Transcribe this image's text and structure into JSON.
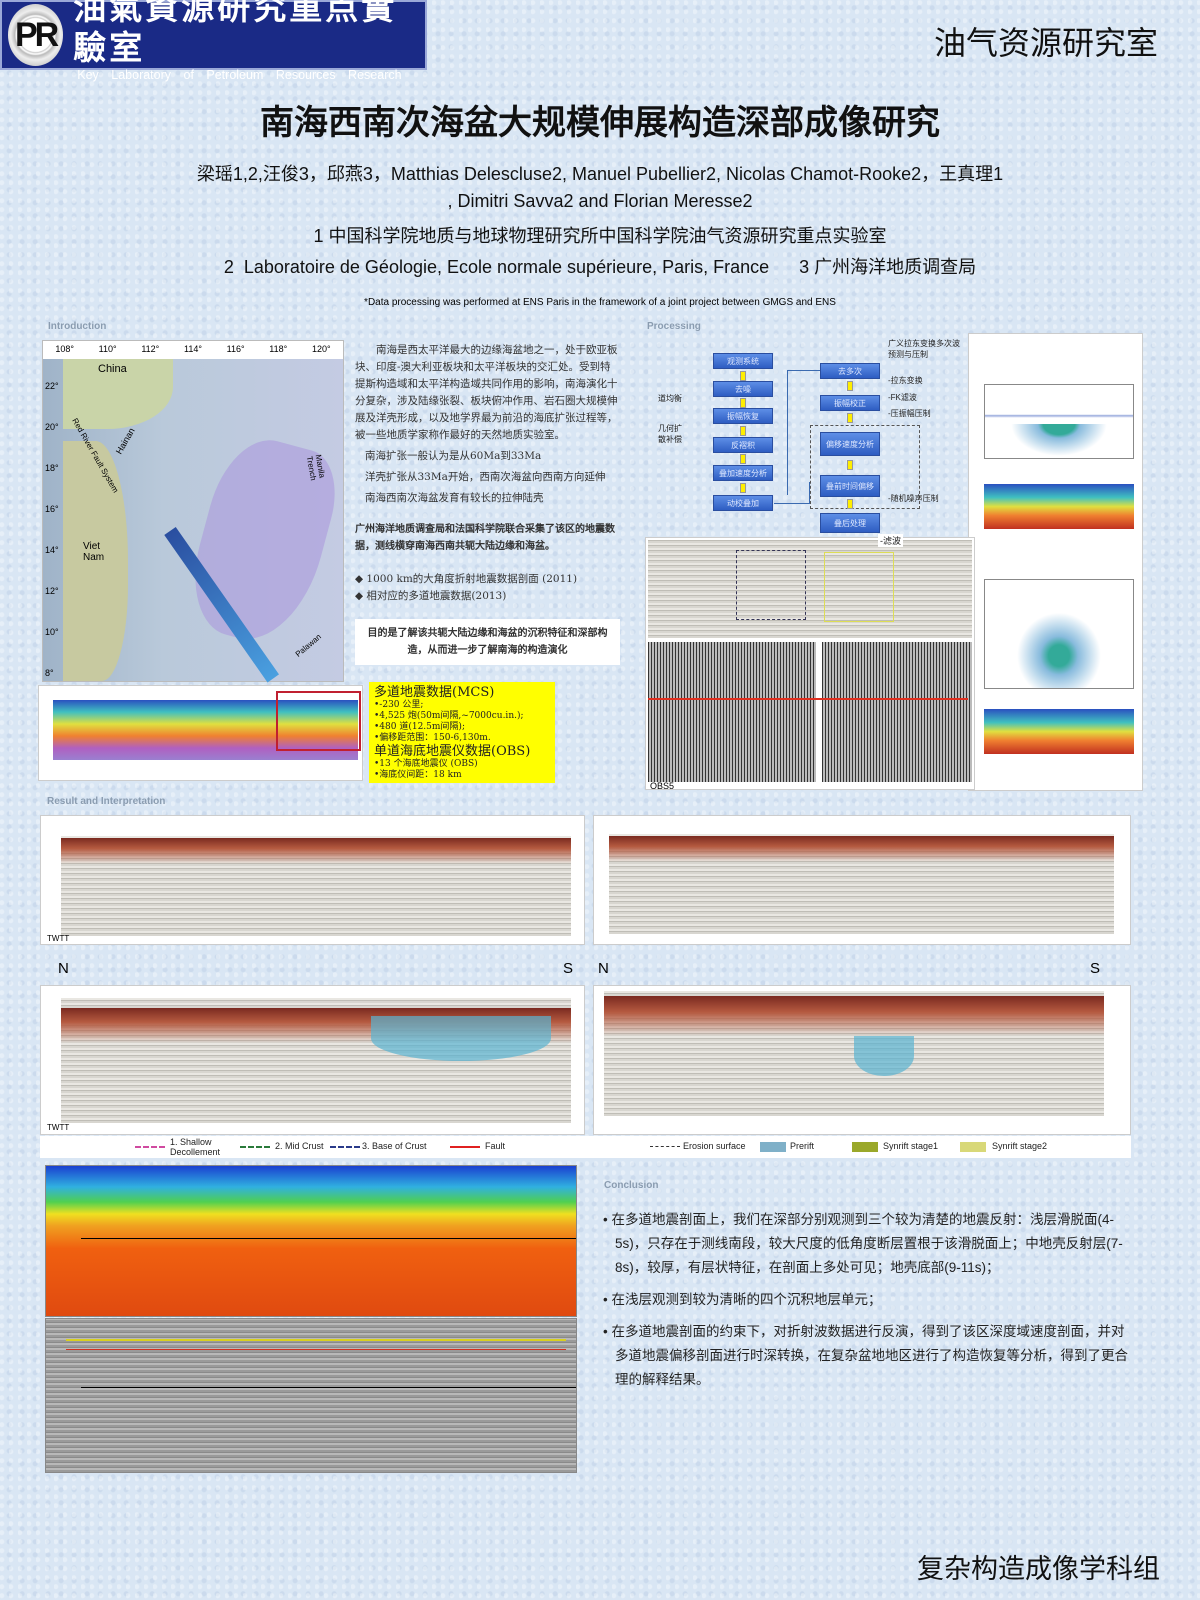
{
  "header": {
    "logo_letters": "PR",
    "logo_cn": "油氣資源研究重点實驗室",
    "logo_en": "Key Laboratory of Petroleum Resources Research",
    "right_title": "油气资源研究室"
  },
  "title": "南海西南次海盆大规模伸展构造深部成像研究",
  "authors": [
    "梁瑶1,2,汪俊3，邱燕3，Matthias Delescluse2, Manuel Pubellier2, Nicolas Chamot-Rooke2，王真理1",
    ", Dimitri Savva2 and Florian Meresse2"
  ],
  "affiliations": [
    "1 中国科学院地质与地球物理研究所中国科学院油气资源研究重点实验室",
    "2  Laboratoire de Géologie, Ecole normale supérieure, Paris, France      3 广州海洋地质调查局"
  ],
  "note": "*Data processing was performed at ENS Paris in the framework of a joint project between GMGS and ENS",
  "introduction": {
    "label": "Introduction",
    "map_labels": {
      "lon": [
        "108°",
        "110°",
        "112°",
        "114°",
        "116°",
        "118°",
        "120°"
      ],
      "lat": [
        "22°",
        "20°",
        "18°",
        "16°",
        "14°",
        "12°",
        "10°",
        "8°"
      ],
      "china": "China",
      "hainan": "Hainan",
      "vietnam": "Viet Nam",
      "red_river": "Red River Fault System",
      "manila": "Manila Trench",
      "palawan": "Palawan"
    },
    "paragraph": "南海是西太平洋最大的边缘海盆地之一，处于欧亚板块、印度-澳大利亚板块和太平洋板块的交汇处。受到特提斯构造域和太平洋构造域共同作用的影响，南海演化十分复杂，涉及陆缘张裂、板块俯冲作用、岩石圈大规模伸展及洋壳形成，以及地学界最为前沿的海底扩张过程等，被一些地质学家称作最好的天然地质实验室。",
    "bullets": [
      "南海扩张一般认为是从60Ma到33Ma",
      "洋壳扩张从33Ma开始，西南次海盆向西南方向延伸",
      "南海西南次海盆发育有较长的拉伸陆壳"
    ],
    "survey": "广州海洋地质调查局和法国科学院联合采集了该区的地震数据，测线横穿南海西南共轭大陆边缘和海盆。",
    "data": [
      "1000 km的大角度折射地震数据剖面 (2011)",
      "相对应的多道地震数据(2013)"
    ],
    "goal": "目的是了解该共轭大陆边缘和海盆的沉积特征和深部构造，从而进一步了解南海的构造演化"
  },
  "acquisition": {
    "mcs_title": "多道地震数据(MCS)",
    "mcs": [
      "•-230 公里;",
      "•4,525 炮(50m间隔,~7000cu.in.);",
      "•480 道(12.5m间隔);",
      "•偏移距范围：150-6,130m."
    ],
    "obs_title": "单道海底地震仪数据(OBS)",
    "obs": [
      "•13 个海底地震仪 (OBS)",
      "•海底仪间距：18 km"
    ]
  },
  "processing": {
    "label": "Processing",
    "left_flow": [
      "观测系统",
      "去噪",
      "振幅恢复",
      "反褶积",
      "叠加速度分析",
      "动校叠加"
    ],
    "right_flow": [
      "去多次",
      "振幅校正",
      "偏移速度分析",
      "叠前时间偏移",
      "叠后处理"
    ],
    "left_notes": [
      "道均衡",
      "几何扩散补偿"
    ],
    "right_notes": [
      "广义拉东变换多次波预测与压制",
      "-拉东变换",
      "-FK滤波",
      "-压振幅压制"
    ],
    "post_notes": [
      "-随机噪声压制",
      "-滤波"
    ],
    "obs_label": "OBS5"
  },
  "results": {
    "label": "Result and Interpretation",
    "north": "N",
    "south": "S",
    "twtt": "TWTT",
    "legend": [
      "1. Shallow Decollement",
      "2. Mid Crust",
      "3. Base of Crust",
      "Fault",
      "Erosion surface",
      "Prerift",
      "Synrift stage1",
      "Synrift stage2"
    ],
    "legend_colors": [
      "#d04aa0",
      "#2a7a3a",
      "#2a3a8a",
      "#e02020",
      "#333333",
      "#7fb0c8",
      "#9aa82a",
      "#d8d878"
    ]
  },
  "conclusion": {
    "label": "Conclusion",
    "items": [
      "在多道地震剖面上，我们在深部分别观测到三个较为清楚的地震反射：浅层滑脱面(4-5s)，只存在于测线南段，较大尺度的低角度断层置根于该滑脱面上；中地壳反射层(7-8s)，较厚，有层状特征，在剖面上多处可见；地壳底部(9-11s)；",
      "在浅层观测到较为清晰的四个沉积地层单元；",
      "在多道地震剖面的约束下，对折射波数据进行反演，得到了该区深度域速度剖面，并对多道地震偏移剖面进行时深转换，在复杂盆地地区进行了构造恢复等分析，得到了更合理的解释结果。"
    ]
  },
  "footer": "复杂构造成像学科组"
}
